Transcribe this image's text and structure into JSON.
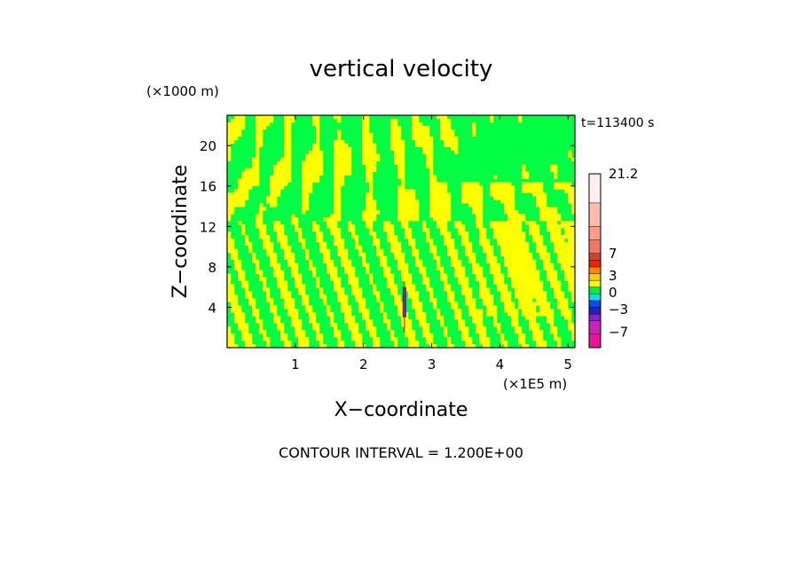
{
  "chart_data": {
    "type": "heatmap",
    "title": "vertical velocity",
    "xlabel": "X−coordinate",
    "ylabel": "Z−coordinate",
    "x_unit_label": "(×1E5 m)",
    "y_unit_label": "(×1000 m)",
    "time_label": "t=113400 s",
    "contour_label": "CONTOUR INTERVAL = 1.200E+00",
    "xlim": [
      0,
      5.1
    ],
    "ylim": [
      0,
      23
    ],
    "x_ticks": [
      1,
      2,
      3,
      4,
      5
    ],
    "y_ticks": [
      4,
      8,
      12,
      16,
      20
    ],
    "colorbar": {
      "range": [
        -9.8,
        21.2
      ],
      "tick_values": [
        21.2,
        7,
        3,
        0,
        -3,
        -7
      ],
      "tick_labels": [
        "21.2",
        "7",
        "3",
        "0",
        "−3",
        "−7"
      ],
      "levels": [
        {
          "from": -9.8,
          "to": -7.4,
          "color": "#ee1199"
        },
        {
          "from": -7.4,
          "to": -5.0,
          "color": "#cc22bb"
        },
        {
          "from": -5.0,
          "to": -3.8,
          "color": "#8822cc"
        },
        {
          "from": -3.8,
          "to": -2.6,
          "color": "#2222bb"
        },
        {
          "from": -2.6,
          "to": -1.4,
          "color": "#1144ff"
        },
        {
          "from": -1.4,
          "to": -0.2,
          "color": "#11dddd"
        },
        {
          "from": -0.2,
          "to": 1.0,
          "color": "#00ee44"
        },
        {
          "from": 1.0,
          "to": 2.2,
          "color": "#eeff00"
        },
        {
          "from": 2.2,
          "to": 3.4,
          "color": "#ffcc00"
        },
        {
          "from": 3.4,
          "to": 4.6,
          "color": "#ff8800"
        },
        {
          "from": 4.6,
          "to": 5.8,
          "color": "#ee2200"
        },
        {
          "from": 5.8,
          "to": 7.0,
          "color": "#cc4433"
        },
        {
          "from": 7.0,
          "to": 9.4,
          "color": "#ee7766"
        },
        {
          "from": 9.4,
          "to": 11.8,
          "color": "#ff9988"
        },
        {
          "from": 11.8,
          "to": 16.0,
          "color": "#ffbbb0"
        },
        {
          "from": 16.0,
          "to": 21.2,
          "color": "#ffeeee"
        }
      ]
    },
    "field_colors": {
      "positive": "#ffff00",
      "near_zero": "#00ff44"
    }
  }
}
